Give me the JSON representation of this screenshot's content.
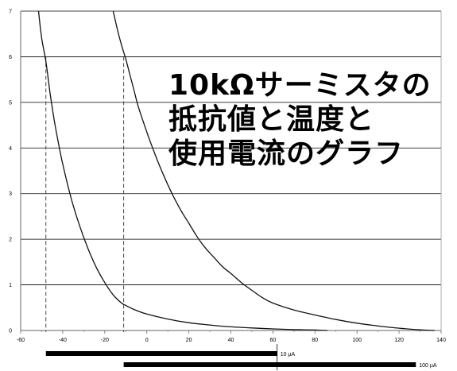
{
  "overlay_title": {
    "line1": "10kΩサーミスタの",
    "line2": "抵抗値と温度と",
    "line3": "使用電流のグラフ"
  },
  "chart_data": {
    "type": "line",
    "title": "",
    "xlabel": "",
    "ylabel": "",
    "xlim": [
      -60,
      140
    ],
    "ylim": [
      0,
      7
    ],
    "grid": true,
    "x_ticks": [
      "-60",
      "-40",
      "-20",
      "0",
      "20",
      "40",
      "60",
      "80",
      "100",
      "120",
      "140"
    ],
    "y_ticks": [
      "0",
      "1",
      "2",
      "3",
      "4",
      "5",
      "6",
      "7"
    ],
    "series": [
      {
        "x": [
          -51.5,
          -50,
          -48,
          -46,
          -44,
          -42,
          -40,
          -36,
          -32,
          -28,
          -24,
          -20,
          -16,
          -12,
          -10,
          -6,
          0,
          10,
          20,
          30,
          40,
          50,
          60,
          70,
          80,
          86
        ],
        "y": [
          7.0,
          6.4,
          5.9,
          5.2,
          4.6,
          4.1,
          3.65,
          2.9,
          2.3,
          1.8,
          1.38,
          1.05,
          0.78,
          0.6,
          0.55,
          0.46,
          0.36,
          0.25,
          0.17,
          0.12,
          0.08,
          0.055,
          0.035,
          0.02,
          0.01,
          0.0
        ]
      },
      {
        "x": [
          -16,
          -14,
          -12,
          -10,
          -8,
          -6,
          -4,
          0,
          4,
          8,
          12,
          16,
          20,
          24,
          28,
          32,
          36,
          40,
          45,
          50,
          55,
          60,
          70,
          80,
          90,
          100,
          110,
          120,
          130,
          137
        ],
        "y": [
          7.0,
          6.6,
          6.25,
          5.95,
          5.6,
          5.25,
          4.9,
          4.35,
          3.85,
          3.4,
          3.0,
          2.65,
          2.35,
          2.05,
          1.8,
          1.6,
          1.4,
          1.25,
          1.05,
          0.88,
          0.72,
          0.6,
          0.45,
          0.34,
          0.24,
          0.16,
          0.1,
          0.05,
          0.015,
          0.0
        ]
      }
    ],
    "dashed_markers": [
      {
        "x": -48,
        "y": 6
      },
      {
        "x": -11,
        "y": 6
      }
    ],
    "range_bars": [
      {
        "label": "10 µA",
        "from": -48,
        "to": 62
      },
      {
        "label": "100 µA",
        "from": -11,
        "to": 128
      }
    ]
  }
}
